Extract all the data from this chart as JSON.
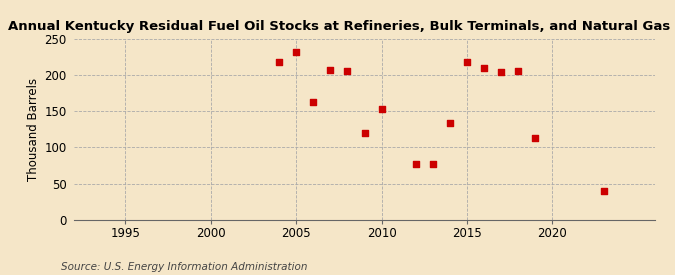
{
  "title": "Annual Kentucky Residual Fuel Oil Stocks at Refineries, Bulk Terminals, and Natural Gas Plants",
  "ylabel": "Thousand Barrels",
  "source": "Source: U.S. Energy Information Administration",
  "background_color": "#f5e6c8",
  "plot_bg_color": "#f5e6c8",
  "marker_color": "#cc0000",
  "years": [
    2004,
    2005,
    2006,
    2007,
    2008,
    2009,
    2010,
    2012,
    2013,
    2014,
    2015,
    2016,
    2017,
    2018,
    2019,
    2023
  ],
  "values": [
    217,
    231,
    163,
    207,
    205,
    120,
    153,
    77,
    77,
    134,
    218,
    209,
    204,
    205,
    113,
    40
  ],
  "xlim": [
    1992,
    2026
  ],
  "ylim": [
    0,
    250
  ],
  "xticks": [
    1995,
    2000,
    2005,
    2010,
    2015,
    2020
  ],
  "yticks": [
    0,
    50,
    100,
    150,
    200,
    250
  ],
  "title_fontsize": 9.5,
  "axis_fontsize": 8.5,
  "source_fontsize": 7.5
}
